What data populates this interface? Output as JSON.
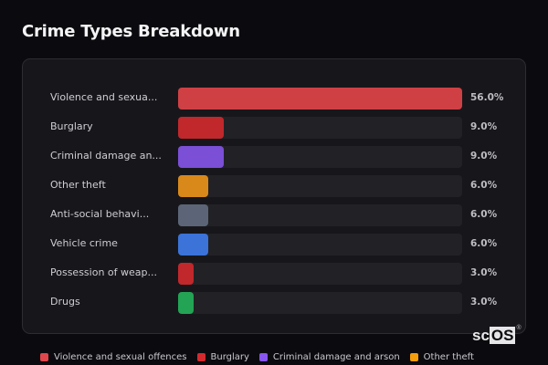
{
  "header": {
    "title": "Crime Types Breakdown"
  },
  "logo": {
    "text_left": "sc",
    "text_boxed": "OS",
    "registered": "®"
  },
  "chart_data": {
    "type": "bar",
    "orientation": "horizontal",
    "title": "Crime Types Breakdown",
    "xlabel": "",
    "ylabel": "",
    "unit": "%",
    "categories": [
      "Violence and sexual offences",
      "Burglary",
      "Criminal damage and arson",
      "Other theft",
      "Anti-social behaviour",
      "Vehicle crime",
      "Possession of weapons",
      "Drugs"
    ],
    "display_labels": [
      "Violence and sexua...",
      "Burglary",
      "Criminal damage an...",
      "Other theft",
      "Anti-social behavi...",
      "Vehicle crime",
      "Possession of weap...",
      "Drugs"
    ],
    "values": [
      56.0,
      9.0,
      9.0,
      6.0,
      6.0,
      6.0,
      3.0,
      3.0
    ],
    "value_labels": [
      "56.0%",
      "9.0%",
      "9.0%",
      "6.0%",
      "6.0%",
      "6.0%",
      "3.0%",
      "3.0%"
    ],
    "colors": [
      "#cf4044",
      "#c0282c",
      "#7b4fd6",
      "#d8891a",
      "#5c6577",
      "#3b73d8",
      "#c0282c",
      "#23a455"
    ],
    "xlim": [
      0,
      56
    ],
    "grid": false,
    "legend_position": "bottom",
    "legend": [
      {
        "label": "Violence and sexual offences",
        "color": "#e0474c"
      },
      {
        "label": "Burglary",
        "color": "#d42a2e"
      },
      {
        "label": "Criminal damage and arson",
        "color": "#8855ee"
      },
      {
        "label": "Other theft",
        "color": "#f59e0b"
      }
    ]
  }
}
